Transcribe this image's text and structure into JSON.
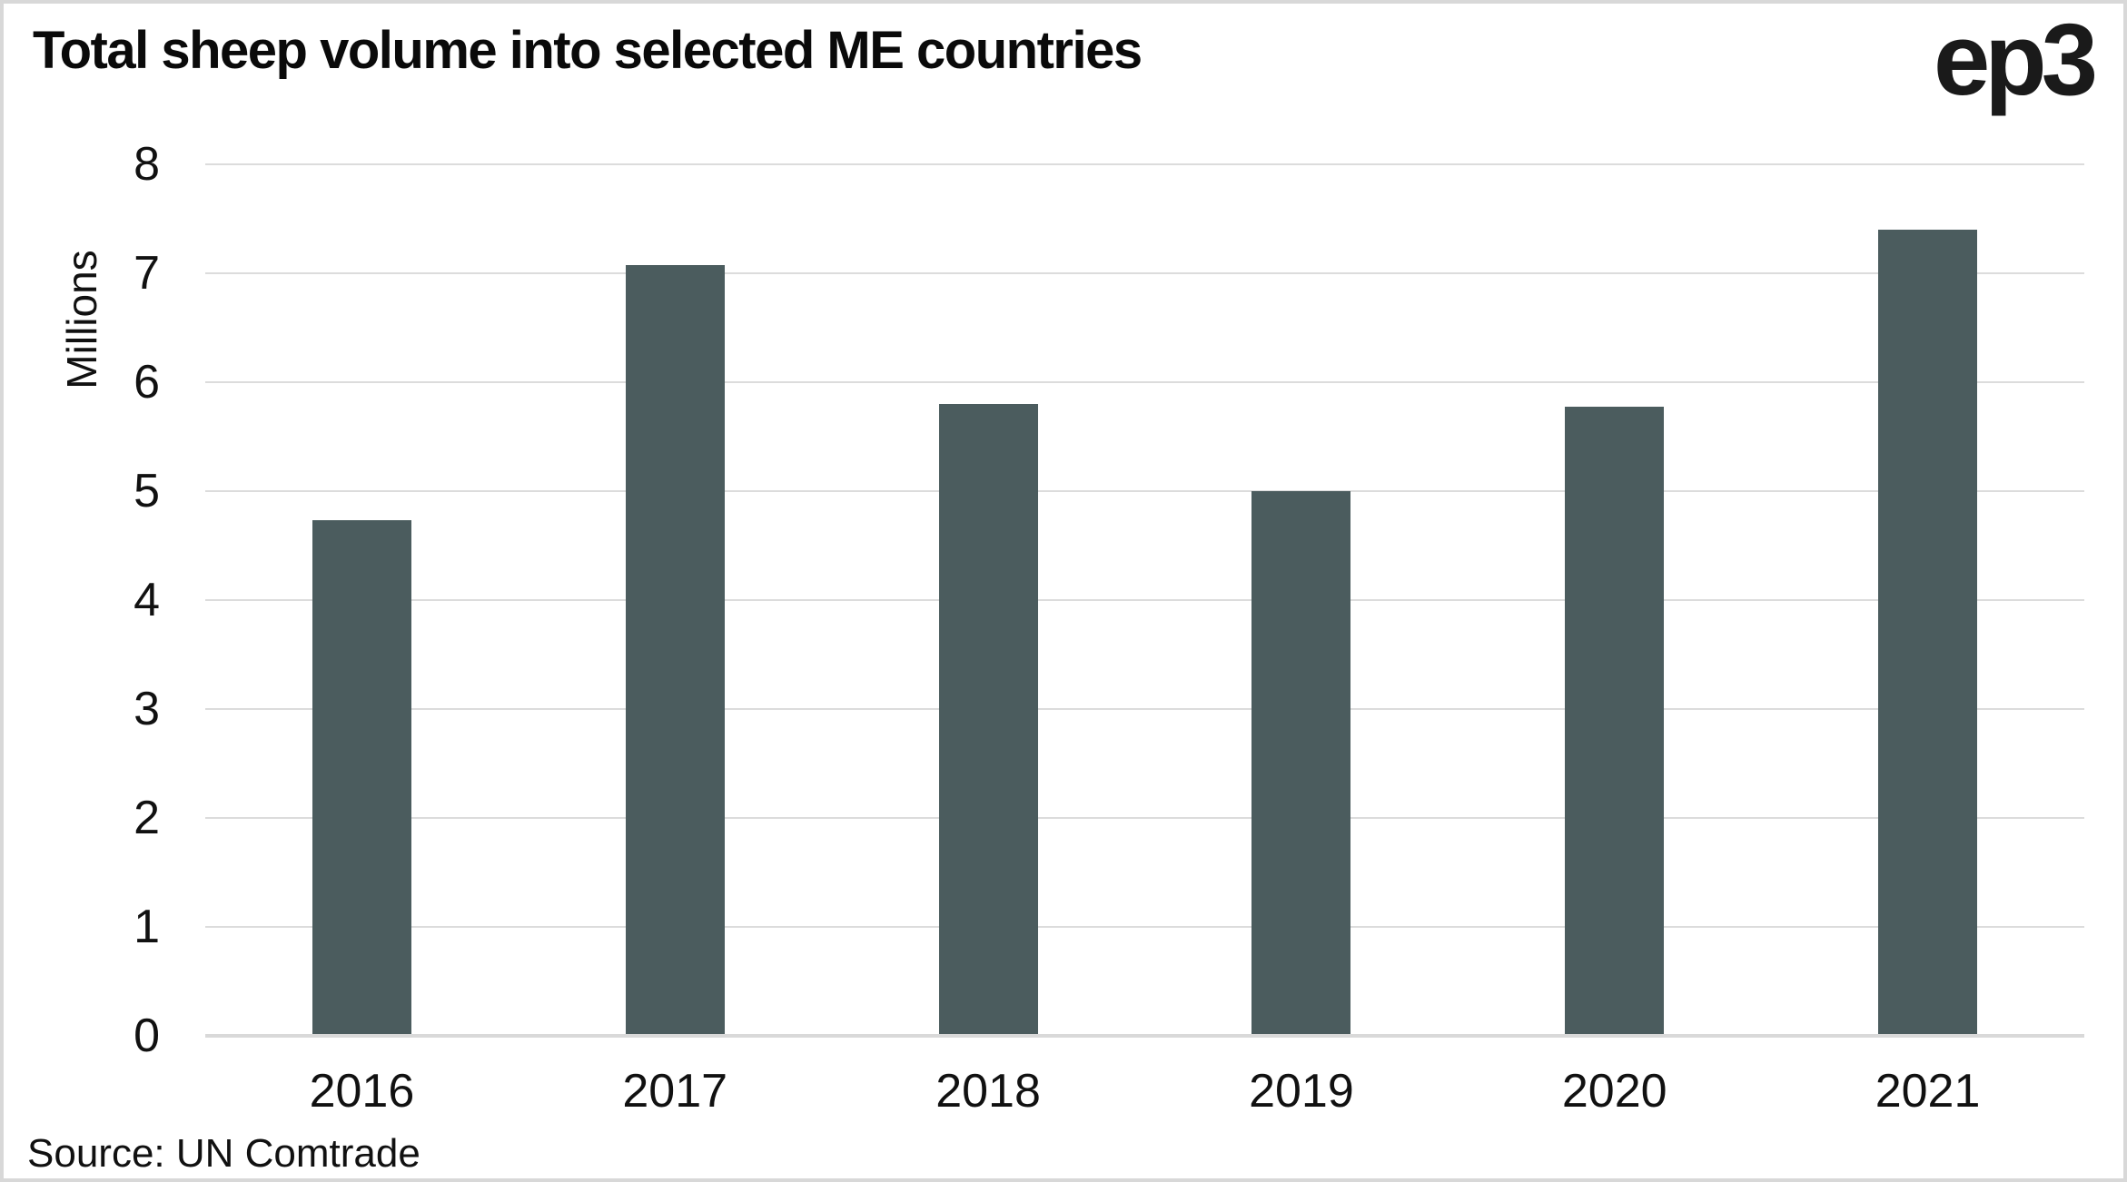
{
  "header": {
    "logo": "ep3"
  },
  "footer": {
    "source": "Source: UN Comtrade"
  },
  "chart_data": {
    "type": "bar",
    "title": "Total sheep volume into selected ME countries",
    "categories": [
      "2016",
      "2017",
      "2018",
      "2019",
      "2020",
      "2021"
    ],
    "values": [
      4.72,
      7.06,
      5.78,
      4.98,
      5.76,
      7.38
    ],
    "xlabel": "",
    "ylabel": "Millions",
    "ylim": [
      0,
      8
    ],
    "ytick_step": 1,
    "grid": "horizontal",
    "legend": "none",
    "source": "Source: UN Comtrade",
    "colors": {
      "bar": "#4b5c5e",
      "gridline": "#dcdcdc",
      "axis_line": "#d9d9d9",
      "text": "#111111",
      "frame_border": "#d8d8d8"
    }
  }
}
